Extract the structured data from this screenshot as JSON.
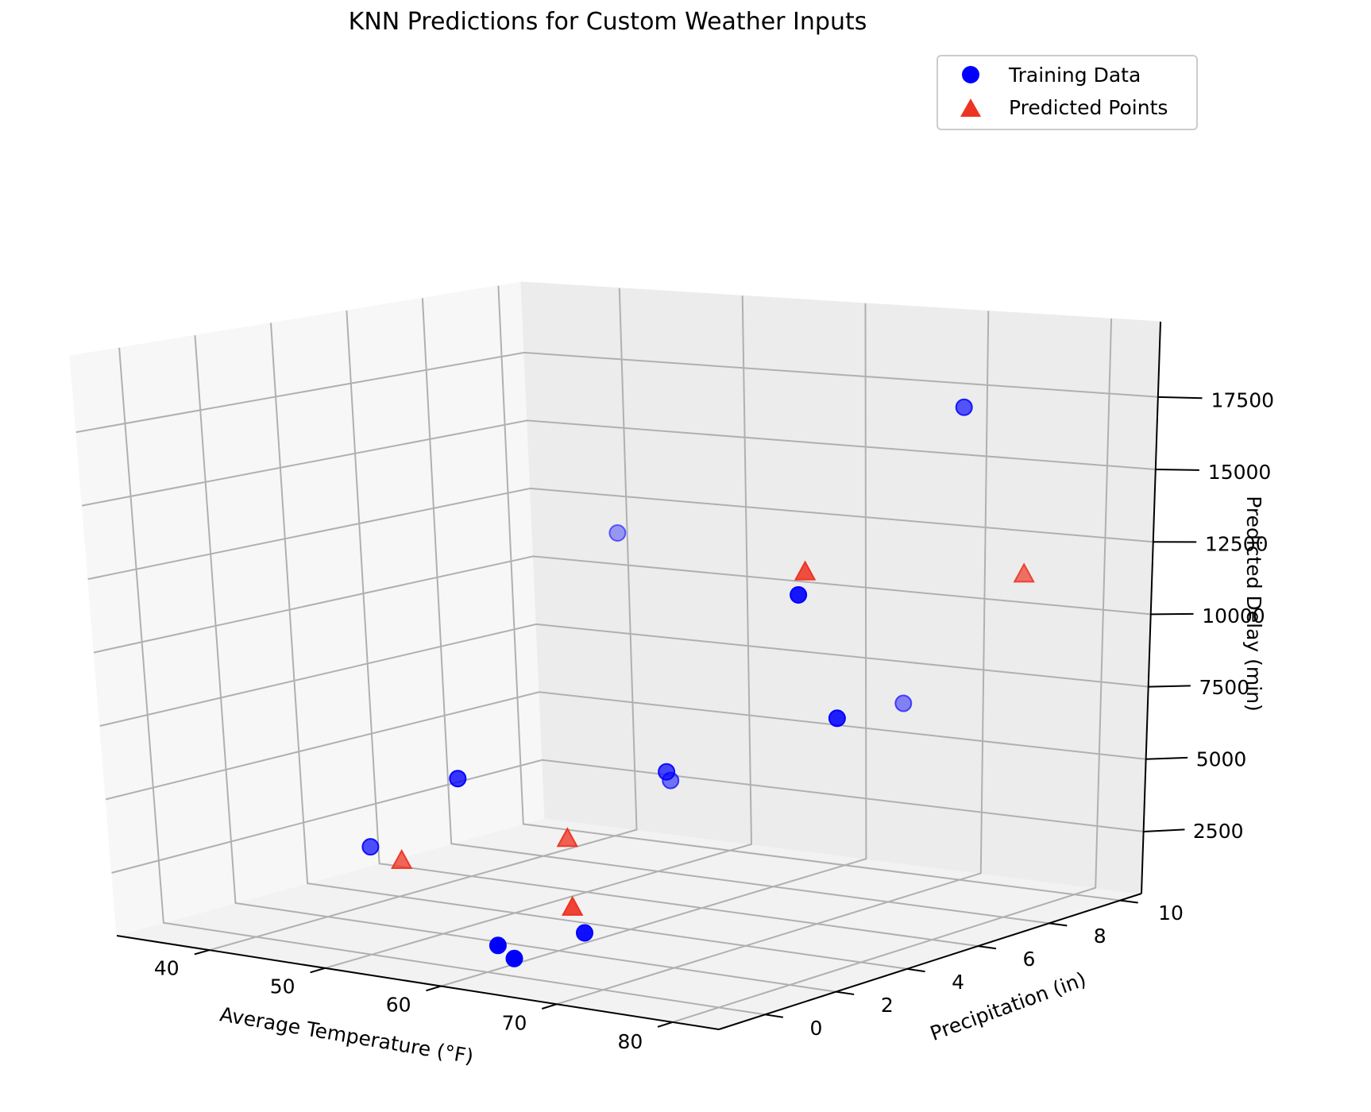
{
  "chart_data": {
    "type": "scatter",
    "projection": "3d",
    "title": "KNN Predictions for Custom Weather Inputs",
    "xlabel": "Average Temperature (°F)",
    "ylabel": "Precipitation (in)",
    "zlabel": "Predicted Delay (min)",
    "x_ticks": [
      "40",
      "50",
      "60",
      "70",
      "80"
    ],
    "y_ticks": [
      "0",
      "2",
      "4",
      "6",
      "8",
      "10"
    ],
    "z_ticks": [
      "2500",
      "5000",
      "7500",
      "10000",
      "12500",
      "15000",
      "17500"
    ],
    "xlim": [
      32,
      84
    ],
    "ylim": [
      -1.3,
      10.6
    ],
    "zlim": [
      360,
      20100
    ],
    "grid": true,
    "legend_position": "upper-right",
    "series": [
      {
        "name": "Training Data",
        "marker": "circle",
        "color": "#0000ff",
        "points": [
          {
            "x": 48.8,
            "y": 3.0,
            "z": 5100
          },
          {
            "x": 55.4,
            "y": 6.7,
            "z": 4200
          },
          {
            "x": 39.3,
            "y": 3.5,
            "z": 2200
          },
          {
            "x": 61.1,
            "y": 4.8,
            "z": 5300
          },
          {
            "x": 58.2,
            "y": 0.9,
            "z": 800
          },
          {
            "x": 62.0,
            "y": 2.1,
            "z": 1000
          },
          {
            "x": 62.1,
            "y": 0.1,
            "z": 860
          },
          {
            "x": 78.1,
            "y": 4.1,
            "z": 7800
          },
          {
            "x": 77.0,
            "y": 3.5,
            "z": 11700
          },
          {
            "x": 80.4,
            "y": 6.8,
            "z": 17300
          },
          {
            "x": 47.4,
            "y": 8.0,
            "z": 12100
          },
          {
            "x": 69.8,
            "y": 8.5,
            "z": 6900
          }
        ]
      },
      {
        "name": "Predicted Points",
        "marker": "triangle",
        "color": "#ee3322",
        "points": [
          {
            "x": 76.0,
            "y": 4.0,
            "z": 12300
          },
          {
            "x": 85.1,
            "y": 6.9,
            "z": 12000
          },
          {
            "x": 55.8,
            "y": 3.7,
            "z": 3200
          },
          {
            "x": 42.9,
            "y": 3.2,
            "z": 2000
          },
          {
            "x": 60.1,
            "y": 2.4,
            "z": 1600
          }
        ]
      }
    ]
  }
}
